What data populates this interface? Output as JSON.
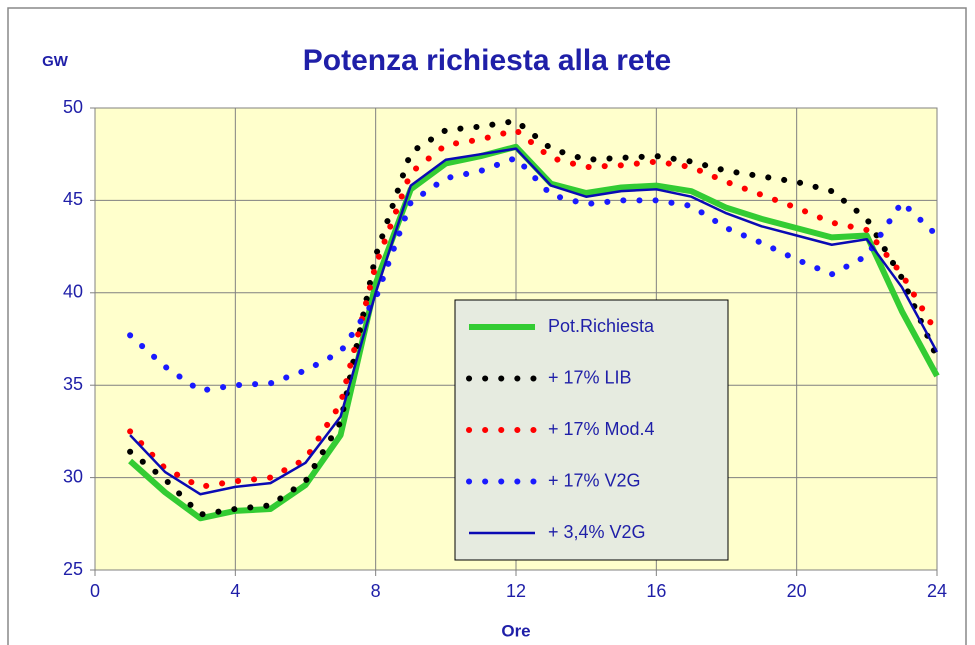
{
  "chart_data": {
    "type": "line",
    "title": "Potenza richiesta alla rete",
    "y_label": "GW",
    "x_label": "Ore",
    "x": [
      1,
      2,
      3,
      4,
      5,
      6,
      7,
      8,
      9,
      10,
      11,
      12,
      13,
      14,
      15,
      16,
      17,
      18,
      19,
      20,
      21,
      22,
      23,
      24
    ],
    "xlim": [
      0,
      24
    ],
    "xticks": [
      0,
      4,
      8,
      12,
      16,
      20,
      24
    ],
    "ylim": [
      25,
      50
    ],
    "yticks": [
      25,
      30,
      35,
      40,
      45,
      50
    ],
    "grid": true,
    "legend_position": "lower right",
    "series": [
      {
        "name": "Pot.Richiesta",
        "color": "#33cc33",
        "style": "solid",
        "width": 6,
        "values": [
          30.9,
          29.2,
          27.8,
          28.2,
          28.3,
          29.6,
          32.3,
          40.5,
          45.6,
          47.0,
          47.4,
          47.9,
          45.9,
          45.4,
          45.7,
          45.8,
          45.5,
          44.6,
          44.0,
          43.5,
          43.0,
          43.1,
          39.0,
          35.5
        ]
      },
      {
        "name": "+ 17% LIB",
        "color": "#000000",
        "style": "dotted",
        "width": 6,
        "values": [
          31.4,
          29.9,
          28.0,
          28.3,
          28.5,
          29.8,
          33.0,
          42.0,
          47.6,
          48.8,
          49.0,
          49.3,
          47.8,
          47.2,
          47.3,
          47.4,
          47.1,
          46.6,
          46.3,
          46.0,
          45.5,
          44.0,
          40.8,
          36.5
        ]
      },
      {
        "name": "+ 17% Mod.4",
        "color": "#ff0000",
        "style": "dotted",
        "width": 6,
        "values": [
          32.5,
          30.5,
          29.5,
          29.8,
          30.0,
          31.0,
          34.0,
          41.5,
          46.5,
          48.0,
          48.3,
          48.8,
          47.3,
          46.8,
          46.9,
          47.1,
          46.8,
          46.0,
          45.3,
          44.6,
          43.8,
          43.4,
          41.0,
          37.8
        ]
      },
      {
        "name": "+ 17% V2G",
        "color": "#1a1aff",
        "style": "dotted",
        "width": 6,
        "values": [
          37.7,
          36.0,
          34.7,
          35.0,
          35.1,
          35.8,
          36.8,
          39.7,
          44.9,
          46.2,
          46.6,
          47.3,
          45.3,
          44.8,
          45.0,
          45.0,
          44.7,
          43.5,
          42.7,
          41.8,
          41.0,
          42.0,
          44.9,
          43.1
        ]
      },
      {
        "name": "+ 3,4% V2G",
        "color": "#0a0ab4",
        "style": "solid",
        "width": 2.5,
        "values": [
          32.3,
          30.3,
          29.1,
          29.5,
          29.7,
          30.8,
          33.3,
          40.0,
          45.8,
          47.2,
          47.5,
          47.8,
          45.8,
          45.2,
          45.5,
          45.6,
          45.2,
          44.3,
          43.6,
          43.1,
          42.6,
          42.9,
          40.3,
          36.8
        ]
      }
    ]
  }
}
